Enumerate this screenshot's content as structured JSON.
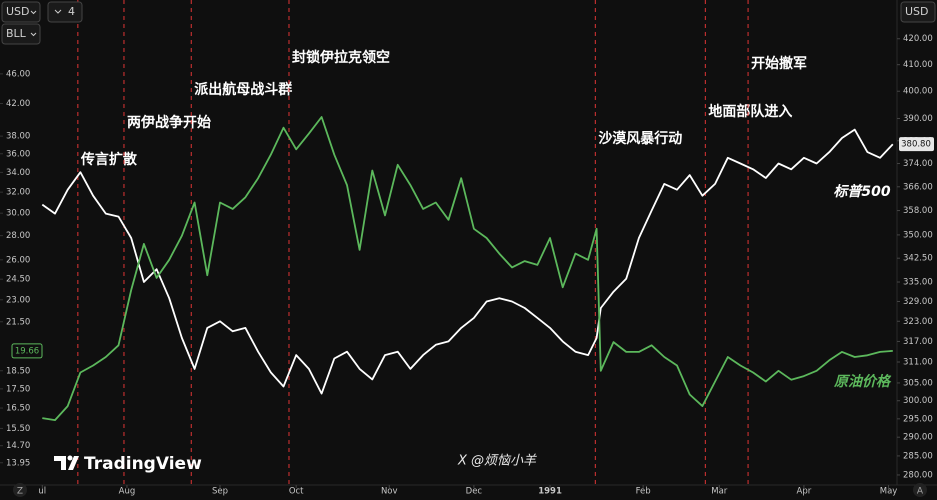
{
  "chart_data": {
    "type": "line",
    "x": [
      10,
      13,
      16,
      19,
      22,
      25,
      28,
      31,
      34,
      37,
      40,
      43,
      46,
      49,
      52,
      55,
      58,
      61,
      64,
      67,
      70,
      73,
      76,
      79,
      82,
      85,
      88,
      91,
      94,
      97,
      100,
      103,
      106,
      109,
      112,
      115,
      118,
      121,
      124,
      127,
      130,
      133,
      136,
      139,
      141,
      142,
      145,
      148,
      151,
      154,
      157,
      160,
      163,
      166,
      169,
      172,
      175,
      178,
      181,
      184,
      187,
      190,
      193,
      196,
      199,
      202,
      205,
      208,
      211
    ],
    "xlim": [
      0,
      212
    ],
    "xticks": [
      {
        "value": 10,
        "label": "ul"
      },
      {
        "value": 30,
        "label": "Aug"
      },
      {
        "value": 52,
        "label": "Sep"
      },
      {
        "value": 70,
        "label": "Oct"
      },
      {
        "value": 92,
        "label": "Nov"
      },
      {
        "value": 112,
        "label": "Dec"
      },
      {
        "value": 130,
        "label": "1991"
      },
      {
        "value": 152,
        "label": "Feb"
      },
      {
        "value": 170,
        "label": "Mar"
      },
      {
        "value": 190,
        "label": "Apr"
      },
      {
        "value": 210,
        "label": "May"
      }
    ],
    "log_scale": true,
    "grid": false,
    "ylim": [
      13.03,
      57.7
    ],
    "yticks": [
      13.95,
      {
        "value": 14.7,
        "label": "14.70"
      },
      {
        "value": 15.5,
        "label": "15.50"
      },
      {
        "value": 16.5,
        "label": "16.50"
      },
      {
        "value": 17.5,
        "label": "17.50"
      },
      {
        "value": 18.5,
        "label": "18.50"
      },
      {
        "value": 21.5,
        "label": "21.50"
      },
      {
        "value": 23,
        "label": "23.00"
      },
      {
        "value": 24.5,
        "label": "24.50"
      },
      {
        "value": 26,
        "label": "26.00"
      },
      {
        "value": 28,
        "label": "28.00"
      },
      {
        "value": 30,
        "label": "30.00"
      },
      {
        "value": 32,
        "label": "32.00"
      },
      {
        "value": 34,
        "label": "34.00"
      },
      {
        "value": 36,
        "label": "36.00"
      },
      {
        "value": 38,
        "label": "38.00"
      },
      {
        "value": 42,
        "label": "42.00"
      },
      {
        "value": 46,
        "label": "46.00"
      }
    ],
    "y2lim": [
      277.4,
      435.4
    ],
    "y2ticks": [
      {
        "value": 280,
        "label": "280.00"
      },
      {
        "value": 285,
        "label": "285.00"
      },
      {
        "value": 290,
        "label": "290.00"
      },
      {
        "value": 295,
        "label": "295.00"
      },
      {
        "value": 300,
        "label": "300.00"
      },
      {
        "value": 305,
        "label": "305.00"
      },
      {
        "value": 311,
        "label": "311.00"
      },
      {
        "value": 317,
        "label": "317.00"
      },
      {
        "value": 323,
        "label": "323.00"
      },
      {
        "value": 329,
        "label": "329.00"
      },
      {
        "value": 335,
        "label": "335.00"
      },
      {
        "value": 342.5,
        "label": "342.50"
      },
      {
        "value": 350,
        "label": "350.00"
      },
      {
        "value": 358,
        "label": "358.00"
      },
      {
        "value": 366,
        "label": "366.00"
      },
      {
        "value": 374,
        "label": "374.00"
      },
      {
        "value": 382,
        "label": "382.00"
      },
      {
        "value": 390,
        "label": "390.00"
      },
      {
        "value": 400,
        "label": "400.00"
      },
      {
        "value": 410,
        "label": "410.00"
      },
      {
        "value": 420,
        "label": "420.00"
      }
    ],
    "series": [
      {
        "name": "标普500",
        "color": "#ffffff",
        "axis": "y2",
        "price_label": "380.80",
        "values": [
          360,
          357,
          365,
          371,
          363,
          357,
          356,
          349,
          335,
          339,
          330,
          318,
          309,
          321,
          323,
          320,
          321,
          314,
          308,
          304,
          313,
          309,
          302,
          312,
          314,
          309,
          306,
          313,
          314,
          309,
          313,
          316,
          317,
          321,
          324,
          329,
          330,
          329,
          327,
          324,
          321,
          317,
          314,
          313,
          318,
          327,
          332,
          336,
          349,
          358,
          367,
          365,
          370,
          363,
          367,
          376,
          374,
          372,
          369,
          374,
          372,
          376,
          374,
          378,
          383,
          386,
          378,
          376,
          380.8
        ]
      },
      {
        "name": "原油价格",
        "color": "#5cb85c",
        "axis": "y",
        "price_label": "19.66",
        "values": [
          16.0,
          15.9,
          16.6,
          18.4,
          18.8,
          19.3,
          20.0,
          23.7,
          27.3,
          24.6,
          26.0,
          28.0,
          31.0,
          24.8,
          31.0,
          30.4,
          31.5,
          33.4,
          35.9,
          39.0,
          36.5,
          38.3,
          40.3,
          35.9,
          32.7,
          26.8,
          34.2,
          29.8,
          34.8,
          32.7,
          30.4,
          31.0,
          29.4,
          33.4,
          28.6,
          27.8,
          26.5,
          25.4,
          25.9,
          25.6,
          27.8,
          23.9,
          26.5,
          26.0,
          28.6,
          18.5,
          20.2,
          19.6,
          19.6,
          20.0,
          19.3,
          18.8,
          17.2,
          16.6,
          17.9,
          19.3,
          18.8,
          18.4,
          17.9,
          18.5,
          18.0,
          18.2,
          18.5,
          19.1,
          19.6,
          19.3,
          19.4,
          19.6,
          19.66
        ]
      }
    ],
    "events": [
      {
        "x": 18.4,
        "label": "传言扩散"
      },
      {
        "x": 29.3,
        "label": "两伊战争开始"
      },
      {
        "x": 45.2,
        "label": "派出航母战斗群"
      },
      {
        "x": 68.3,
        "label": "封锁伊拉克领空"
      },
      {
        "x": 140.7,
        "label": "沙漠风暴行动"
      },
      {
        "x": 166.7,
        "label": "地面部队进入"
      },
      {
        "x": 176.8,
        "label": "开始撤军"
      }
    ]
  },
  "ui": {
    "currency": "USD",
    "symbol": "BLL",
    "layout": "4",
    "right_currency": "USD",
    "logo": "TradingView",
    "watermark": "X @烦恼小羊",
    "bottom_left": "Z",
    "bottom_right": "A"
  }
}
